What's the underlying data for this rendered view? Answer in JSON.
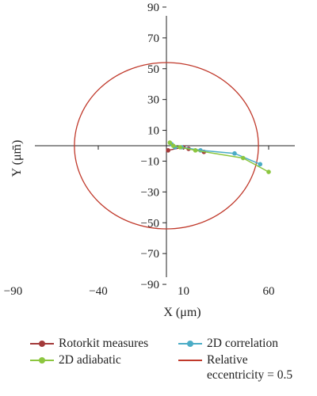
{
  "chart_data": {
    "type": "scatter",
    "title": "",
    "xlabel": "X (μm)",
    "ylabel": "Y (μm)",
    "xlim": [
      -90,
      90
    ],
    "ylim": [
      -90,
      90
    ],
    "x_ticks": [
      "−90",
      "−40",
      "10",
      "60"
    ],
    "x_tick_values": [
      -90,
      -40,
      10,
      60
    ],
    "y_ticks": [
      "90",
      "70",
      "50",
      "30",
      "10",
      "−10",
      "−30",
      "−50",
      "−70",
      "−90"
    ],
    "y_tick_values": [
      90,
      70,
      50,
      30,
      10,
      -10,
      -30,
      -50,
      -70,
      -90
    ],
    "grid": false,
    "legend_position": "bottom",
    "series": [
      {
        "name": "Rotorkit measures",
        "color": "#a33a3a",
        "points": [
          [
            1,
            -3
          ],
          [
            10,
            -1
          ],
          [
            13,
            -2
          ],
          [
            22,
            -4
          ]
        ]
      },
      {
        "name": "2D correlation",
        "color": "#4bacc6",
        "points": [
          [
            3,
            1
          ],
          [
            5,
            -1
          ],
          [
            9,
            -1
          ],
          [
            20,
            -3
          ],
          [
            40,
            -5
          ],
          [
            55,
            -12
          ]
        ]
      },
      {
        "name": "2D adiabatic",
        "color": "#8cc63f",
        "points": [
          [
            2,
            2
          ],
          [
            4,
            0
          ],
          [
            8,
            -1
          ],
          [
            17,
            -3
          ],
          [
            45,
            -8
          ],
          [
            60,
            -17
          ]
        ]
      },
      {
        "name": "Relative\neccentricity = 0.5",
        "color": "#c0392b",
        "circle": {
          "cx": 0,
          "cy": 0,
          "r": 54
        }
      }
    ]
  }
}
